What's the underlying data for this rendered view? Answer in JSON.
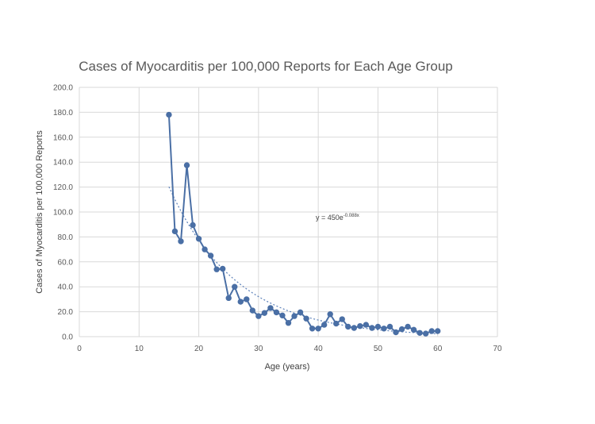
{
  "chart_data": {
    "type": "scatter",
    "title": "Cases of Myocarditis per 100,000 Reports for Each Age Group",
    "xlabel": "Age (years)",
    "ylabel": "Cases of Myocarditis per 100,000 Reports",
    "xlim": [
      0,
      70
    ],
    "ylim": [
      0,
      200
    ],
    "xticks": [
      0,
      10,
      20,
      30,
      40,
      50,
      60,
      70
    ],
    "yticks": [
      0,
      20,
      40,
      60,
      80,
      100,
      120,
      140,
      160,
      180,
      200
    ],
    "xtick_labels": [
      "0",
      "10",
      "20",
      "30",
      "40",
      "50",
      "60",
      "70"
    ],
    "ytick_labels": [
      "0.0",
      "20.0",
      "40.0",
      "60.0",
      "80.0",
      "100.0",
      "120.0",
      "140.0",
      "160.0",
      "180.0",
      "200.0"
    ],
    "grid": true,
    "series": [
      {
        "name": "Cases of Myocarditis per 100,000 Reports",
        "color": "#4a6fa5",
        "x": [
          15,
          16,
          17,
          18,
          19,
          20,
          21,
          22,
          23,
          24,
          25,
          26,
          27,
          28,
          29,
          30,
          31,
          32,
          33,
          34,
          35,
          36,
          37,
          38,
          39,
          40,
          41,
          42,
          43,
          44,
          45,
          46,
          47,
          48,
          49,
          50,
          51,
          52,
          53,
          54,
          55,
          56,
          57,
          58,
          59,
          60
        ],
        "y": [
          178,
          84.5,
          76.5,
          137.5,
          89.5,
          78.5,
          70,
          65,
          54,
          54.5,
          31,
          40,
          28,
          30,
          21,
          16.5,
          19,
          23,
          19.5,
          17,
          11,
          16.5,
          19.5,
          14.5,
          6.5,
          6.5,
          9.5,
          18,
          10.5,
          14,
          8,
          7,
          8.5,
          9.5,
          7,
          8,
          6.5,
          8,
          3.5,
          6,
          8,
          5.5,
          3,
          2.5,
          4.5,
          4.5
        ]
      }
    ],
    "trendline": {
      "type": "exponential",
      "a": 450,
      "b": -0.088,
      "x_range": [
        15,
        60
      ],
      "equation_label": "y = 450e",
      "equation_exponent": "-0.088x",
      "color": "#5a7fb8"
    }
  }
}
